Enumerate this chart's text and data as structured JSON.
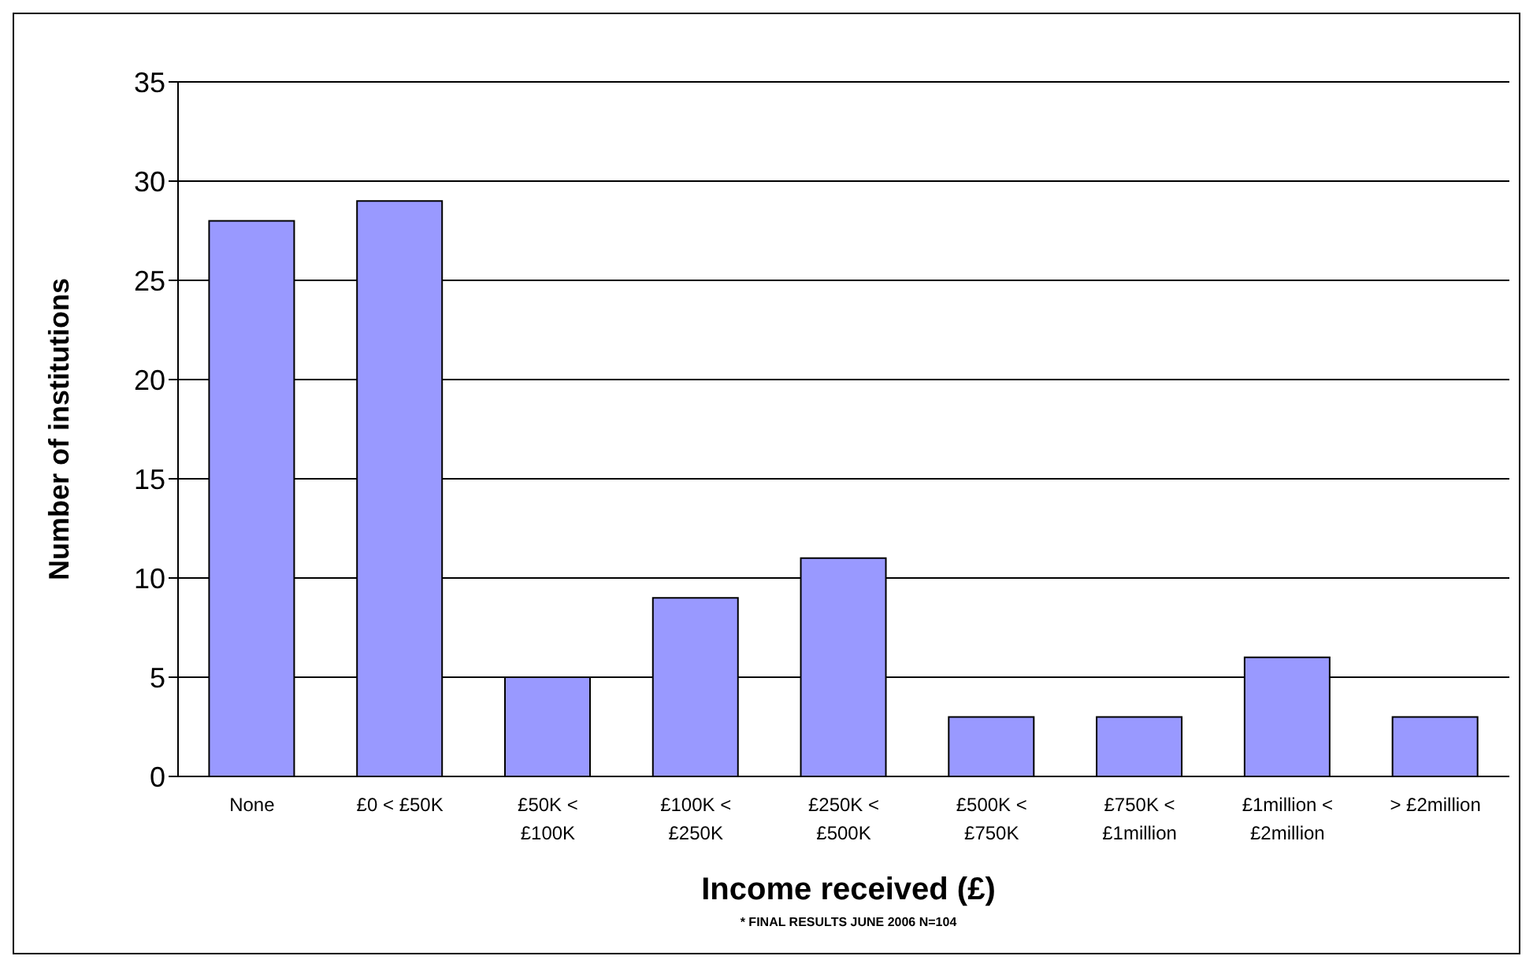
{
  "chart_data": {
    "type": "bar",
    "xlabel": "Income received (£)",
    "ylabel": "Number of institutions",
    "categories": [
      "None",
      "£0 < £50K",
      "£50K < £100K",
      "£100K < £250K",
      "£250K < £500K",
      "£500K < £750K",
      "£750K < £1million",
      "£1million < £2million",
      "> £2million"
    ],
    "values": [
      28,
      29,
      5,
      9,
      11,
      3,
      3,
      6,
      3
    ],
    "color": "#9999ff",
    "ylim": [
      0,
      35
    ],
    "yticks": [
      0,
      5,
      10,
      15,
      20,
      25,
      30,
      35
    ],
    "grid": "y",
    "annotations": [
      "* FINAL RESULTS JUNE 2006 N=104"
    ]
  }
}
